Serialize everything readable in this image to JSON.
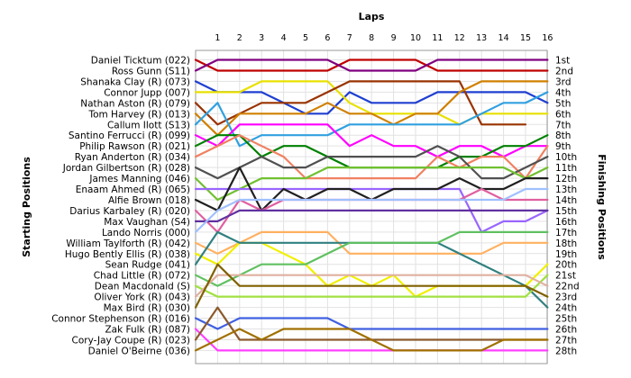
{
  "chart_data": {
    "type": "line",
    "title": "",
    "xlabel": "Laps",
    "ylabel_left": "Starting Positions",
    "ylabel_right": "Finishing Positions",
    "x": [
      0,
      1,
      2,
      3,
      4,
      5,
      6,
      7,
      8,
      9,
      10,
      11,
      12,
      13,
      14,
      15,
      16
    ],
    "x_tick_labels": [
      "1",
      "2",
      "3",
      "4",
      "5",
      "6",
      "7",
      "8",
      "9",
      "10",
      "11",
      "12",
      "13",
      "14",
      "15",
      "16"
    ],
    "ylim": [
      1,
      28
    ],
    "starting_labels": [
      "Daniel Ticktum (022)",
      "Ross Gunn (S11)",
      "Shanaka Clay (R) (073)",
      "Connor Jupp (007)",
      "Nathan Aston (R) (079)",
      "Tom Harvey (R) (013)",
      "Callum Ilott (S13)",
      "Santino Ferrucci (R) (099)",
      "Philip Rawson (R) (021)",
      "Ryan Anderton (R) (034)",
      "Jordan Gilbertson (R) (028)",
      "James Manning (046)",
      "Enaam Ahmed (R) (065)",
      "Alfie Brown (018)",
      "Darius Karbaley (R) (020)",
      "Max Vaughan (S4)",
      "Lando Norris (000)",
      "William Taylforth (R) (042)",
      "Hugo Bently Ellis (R) (038)",
      "Sean Rudge (041)",
      "Chad Little (R) (072)",
      "Dean Macdonald (S)",
      "Oliver York (R) (043)",
      "Max Bird  (R) (030)",
      "Connor Stephenson (R) (016)",
      "Zak Fulk (R) (087)",
      "Cory-Jay Coupe (R) (023)",
      "Daniel O'Beirne (036)"
    ],
    "finishing_labels": [
      "1st",
      "2nd",
      "3rd",
      "4th",
      "5th",
      "6th",
      "7th",
      "8th",
      "9th",
      "10th",
      "11th",
      "12th",
      "13th",
      "14th",
      "15th",
      "16th",
      "17th",
      "18th",
      "19th",
      "20th",
      "21st",
      "22nd",
      "23rd",
      "24th",
      "25th",
      "26th",
      "27th",
      "28th"
    ],
    "grid": true,
    "series": [
      {
        "color": "#c00000",
        "values": [
          1,
          2,
          2,
          2,
          2,
          2,
          2,
          1,
          1,
          1,
          1,
          2,
          2,
          2,
          2,
          2,
          2
        ]
      },
      {
        "color": "#800080",
        "values": [
          2,
          1,
          1,
          1,
          1,
          1,
          1,
          2,
          2,
          2,
          2,
          1,
          1,
          1,
          1,
          1,
          1
        ]
      },
      {
        "color": "#1f3fd0",
        "values": [
          3,
          4,
          4,
          4,
          5,
          6,
          6,
          4,
          5,
          5,
          5,
          4,
          4,
          4,
          4,
          4,
          5
        ]
      },
      {
        "color": "#e8e000",
        "values": [
          4,
          4,
          4,
          3,
          3,
          3,
          3,
          5,
          6,
          6,
          6,
          6,
          7,
          6,
          6,
          6,
          6
        ]
      },
      {
        "color": "#993300",
        "values": [
          5,
          7,
          6,
          5,
          5,
          5,
          4,
          3,
          3,
          3,
          3,
          3,
          3,
          7,
          7,
          7,
          null
        ]
      },
      {
        "color": "#d08000",
        "values": [
          6,
          8,
          6,
          6,
          6,
          6,
          5,
          6,
          6,
          7,
          6,
          6,
          4,
          3,
          3,
          3,
          3
        ]
      },
      {
        "color": "#30a0e0",
        "values": [
          7,
          5,
          9,
          8,
          8,
          8,
          8,
          7,
          7,
          7,
          7,
          7,
          7,
          6,
          5,
          5,
          4
        ]
      },
      {
        "color": "#ff00ff",
        "values": [
          8,
          9,
          7,
          7,
          7,
          7,
          7,
          9,
          8,
          9,
          9,
          10,
          9,
          9,
          10,
          9,
          9
        ]
      },
      {
        "color": "#008000",
        "values": [
          9,
          8,
          8,
          10,
          9,
          9,
          10,
          11,
          11,
          11,
          11,
          11,
          10,
          10,
          9,
          9,
          8
        ]
      },
      {
        "color": "#f08060",
        "values": [
          10,
          9,
          8,
          9,
          10,
          12,
          12,
          12,
          12,
          12,
          12,
          10,
          11,
          10,
          10,
          12,
          9
        ]
      },
      {
        "color": "#505050",
        "values": [
          11,
          12,
          11,
          10,
          11,
          11,
          10,
          10,
          10,
          10,
          10,
          9,
          10,
          12,
          12,
          11,
          10
        ]
      },
      {
        "color": "#70c030",
        "values": [
          12,
          14,
          13,
          12,
          12,
          12,
          11,
          11,
          11,
          11,
          11,
          11,
          11,
          11,
          11,
          12,
          11
        ]
      },
      {
        "color": "#9966ff",
        "values": [
          13,
          13,
          13,
          13,
          13,
          13,
          13,
          13,
          13,
          13,
          13,
          13,
          13,
          17,
          16,
          16,
          15
        ]
      },
      {
        "color": "#202020",
        "values": [
          14,
          15,
          11,
          15,
          13,
          14,
          13,
          13,
          14,
          13,
          13,
          13,
          12,
          13,
          13,
          12,
          12
        ]
      },
      {
        "color": "#e060a0",
        "values": [
          15,
          17,
          14,
          15,
          14,
          14,
          14,
          14,
          14,
          14,
          14,
          14,
          14,
          13,
          14,
          14,
          14
        ]
      },
      {
        "color": "#6030a0",
        "values": [
          16,
          16,
          15,
          15,
          15,
          15,
          15,
          15,
          15,
          15,
          15,
          15,
          15,
          15,
          15,
          15,
          15
        ]
      },
      {
        "color": "#a0c0ff",
        "values": [
          17,
          15,
          14,
          14,
          14,
          14,
          14,
          14,
          14,
          14,
          14,
          14,
          14,
          14,
          14,
          13,
          13
        ]
      },
      {
        "color": "#ffb060",
        "values": [
          18,
          19,
          18,
          17,
          17,
          17,
          17,
          19,
          19,
          19,
          19,
          19,
          19,
          19,
          18,
          18,
          18
        ]
      },
      {
        "color": "#f0f000",
        "values": [
          19,
          20,
          18,
          18,
          19,
          20,
          22,
          21,
          22,
          21,
          23,
          22,
          22,
          22,
          22,
          22,
          20
        ]
      },
      {
        "color": "#308080",
        "values": [
          20,
          17,
          18,
          18,
          18,
          18,
          18,
          18,
          18,
          18,
          18,
          18,
          19,
          20,
          21,
          22,
          24
        ]
      },
      {
        "color": "#60c060",
        "values": [
          21,
          22,
          21,
          20,
          20,
          20,
          19,
          18,
          18,
          18,
          18,
          18,
          17,
          17,
          17,
          17,
          17
        ]
      },
      {
        "color": "#a0e040",
        "values": [
          22,
          23,
          23,
          23,
          23,
          23,
          23,
          23,
          23,
          23,
          23,
          23,
          23,
          23,
          23,
          23,
          21
        ]
      },
      {
        "color": "#e0b0a0",
        "values": [
          23,
          21,
          21,
          21,
          21,
          21,
          21,
          21,
          21,
          21,
          21,
          21,
          21,
          21,
          21,
          21,
          22
        ]
      },
      {
        "color": "#806000",
        "values": [
          24,
          20,
          22,
          22,
          22,
          22,
          22,
          22,
          22,
          22,
          22,
          22,
          22,
          22,
          22,
          22,
          23
        ]
      },
      {
        "color": "#4060e0",
        "values": [
          25,
          26,
          25,
          25,
          25,
          25,
          25,
          26,
          26,
          26,
          26,
          26,
          26,
          26,
          26,
          26,
          26
        ]
      },
      {
        "color": "#ff40ff",
        "values": [
          26,
          28,
          28,
          28,
          28,
          28,
          28,
          28,
          28,
          28,
          28,
          28,
          28,
          28,
          28,
          28,
          28
        ]
      },
      {
        "color": "#8b5a2b",
        "values": [
          27,
          24,
          27,
          27,
          27,
          27,
          27,
          27,
          27,
          27,
          27,
          27,
          27,
          27,
          27,
          27,
          27
        ]
      },
      {
        "color": "#a07000",
        "values": [
          28,
          27,
          26,
          27,
          26,
          26,
          26,
          26,
          27,
          28,
          28,
          28,
          28,
          28,
          27,
          27,
          27
        ]
      }
    ]
  }
}
